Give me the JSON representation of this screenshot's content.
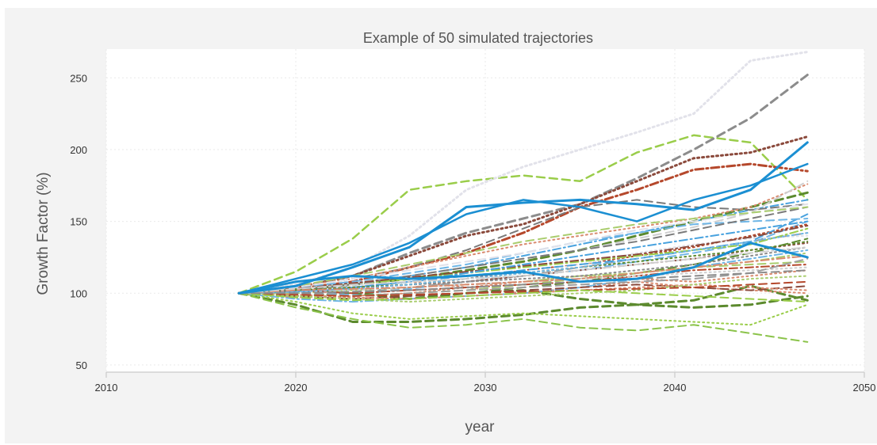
{
  "chart_data": {
    "type": "line",
    "title": "Example of 50 simulated trajectories",
    "xlabel": "year",
    "ylabel": "Growth Factor (%)",
    "xlim": [
      2010,
      2050
    ],
    "ylim": [
      45,
      270
    ],
    "xticks": [
      2010,
      2020,
      2030,
      2040,
      2050
    ],
    "yticks": [
      50,
      100,
      150,
      200,
      250
    ],
    "grid": true,
    "series_count": 50,
    "x": [
      2017,
      2020,
      2023,
      2026,
      2029,
      2032,
      2035,
      2038,
      2041,
      2044,
      2047
    ],
    "series": [
      {
        "values": [
          100,
          105,
          118,
          132,
          160,
          163,
          165,
          162,
          158,
          172,
          205
        ],
        "color": "#1b8fd2",
        "style": "solid",
        "width": 3
      },
      {
        "values": [
          100,
          108,
          112,
          110,
          112,
          115,
          108,
          110,
          118,
          135,
          125
        ],
        "color": "#1b8fd2",
        "style": "solid",
        "width": 3
      },
      {
        "values": [
          100,
          110,
          120,
          135,
          155,
          165,
          160,
          150,
          165,
          175,
          190
        ],
        "color": "#1b8fd2",
        "style": "solid",
        "width": 2.5
      },
      {
        "values": [
          100,
          115,
          138,
          172,
          178,
          182,
          178,
          198,
          210,
          205,
          165
        ],
        "color": "#9acd4a",
        "style": "dash",
        "width": 2.5
      },
      {
        "values": [
          100,
          106,
          118,
          140,
          172,
          188,
          200,
          212,
          225,
          262,
          268
        ],
        "color": "#e2e2ea",
        "style": "dot",
        "width": 3
      },
      {
        "values": [
          100,
          104,
          112,
          128,
          142,
          152,
          162,
          180,
          200,
          222,
          252
        ],
        "color": "#8c8c8c",
        "style": "dash",
        "width": 3
      },
      {
        "values": [
          100,
          104,
          112,
          126,
          140,
          148,
          162,
          178,
          194,
          198,
          209
        ],
        "color": "#8b4a3c",
        "style": "dot",
        "width": 3
      },
      {
        "values": [
          100,
          103,
          108,
          118,
          128,
          142,
          160,
          172,
          186,
          190,
          185
        ],
        "color": "#b5482c",
        "style": "dashdot",
        "width": 3
      },
      {
        "values": [
          100,
          92,
          80,
          80,
          82,
          85,
          90,
          92,
          95,
          105,
          95
        ],
        "color": "#5c8a2e",
        "style": "dash",
        "width": 3
      },
      {
        "values": [
          100,
          90,
          82,
          76,
          78,
          82,
          76,
          74,
          78,
          72,
          66
        ],
        "color": "#8bc34a",
        "style": "dash",
        "width": 2
      },
      {
        "values": [
          100,
          94,
          86,
          82,
          84,
          86,
          84,
          82,
          80,
          78,
          92
        ],
        "color": "#9acd4a",
        "style": "dot",
        "width": 2
      },
      {
        "values": [
          100,
          98,
          100,
          96,
          100,
          102,
          96,
          92,
          90,
          92,
          98
        ],
        "color": "#5c8a2e",
        "style": "dash",
        "width": 3
      },
      {
        "values": [
          100,
          102,
          104,
          108,
          104,
          100,
          104,
          108,
          104,
          102,
          100
        ],
        "color": "#d98a6e",
        "style": "dot",
        "width": 2
      },
      {
        "values": [
          100,
          101,
          99,
          103,
          108,
          112,
          116,
          122,
          128,
          135,
          150
        ],
        "color": "#6fb6e6",
        "style": "dash",
        "width": 2
      },
      {
        "values": [
          100,
          103,
          107,
          112,
          118,
          126,
          134,
          142,
          150,
          158,
          165
        ],
        "color": "#4aa3df",
        "style": "dashdot",
        "width": 2
      },
      {
        "values": [
          100,
          102,
          106,
          110,
          116,
          122,
          130,
          140,
          150,
          160,
          170
        ],
        "color": "#5c8a2e",
        "style": "dash",
        "width": 3
      },
      {
        "values": [
          100,
          101,
          104,
          106,
          110,
          116,
          120,
          126,
          132,
          140,
          148
        ],
        "color": "#b5482c",
        "style": "dot",
        "width": 2
      },
      {
        "values": [
          100,
          99,
          101,
          104,
          108,
          112,
          118,
          124,
          130,
          136,
          142
        ],
        "color": "#9e9e9e",
        "style": "dash",
        "width": 2
      },
      {
        "values": [
          100,
          104,
          110,
          118,
          130,
          145,
          160,
          165,
          160,
          158,
          162
        ],
        "color": "#7a7a7a",
        "style": "dash",
        "width": 2
      },
      {
        "values": [
          100,
          97,
          98,
          100,
          104,
          108,
          112,
          110,
          108,
          112,
          116
        ],
        "color": "#d98a6e",
        "style": "dot",
        "width": 2
      },
      {
        "values": [
          100,
          100,
          102,
          104,
          106,
          108,
          112,
          114,
          118,
          122,
          128
        ],
        "color": "#aacd6e",
        "style": "dashdot",
        "width": 2
      },
      {
        "values": [
          100,
          102,
          105,
          108,
          110,
          114,
          120,
          128,
          134,
          138,
          140
        ],
        "color": "#e2e2ea",
        "style": "dot",
        "width": 2
      },
      {
        "values": [
          100,
          96,
          94,
          96,
          98,
          100,
          104,
          110,
          118,
          124,
          130
        ],
        "color": "#6fb6e6",
        "style": "dashdot",
        "width": 2
      },
      {
        "values": [
          100,
          103,
          100,
          98,
          100,
          104,
          108,
          114,
          120,
          128,
          138
        ],
        "color": "#5c8a2e",
        "style": "dash",
        "width": 2
      },
      {
        "values": [
          100,
          105,
          110,
          118,
          126,
          134,
          140,
          146,
          152,
          160,
          176
        ],
        "color": "#d98a6e",
        "style": "dot",
        "width": 2
      },
      {
        "values": [
          100,
          104,
          108,
          112,
          118,
          124,
          130,
          138,
          146,
          156,
          178
        ],
        "color": "#cfcfcf",
        "style": "dash",
        "width": 2
      },
      {
        "values": [
          100,
          101,
          103,
          106,
          108,
          112,
          116,
          120,
          124,
          130,
          135
        ],
        "color": "#8b4a3c",
        "style": "dot",
        "width": 2
      },
      {
        "values": [
          100,
          99,
          98,
          100,
          102,
          106,
          110,
          114,
          118,
          120,
          122
        ],
        "color": "#aacd6e",
        "style": "dash",
        "width": 2
      },
      {
        "values": [
          100,
          100,
          104,
          108,
          112,
          116,
          120,
          124,
          130,
          136,
          155
        ],
        "color": "#4aa3df",
        "style": "dash",
        "width": 2
      },
      {
        "values": [
          100,
          102,
          100,
          102,
          104,
          106,
          108,
          112,
          116,
          118,
          120
        ],
        "color": "#b5482c",
        "style": "dashdot",
        "width": 2
      },
      {
        "values": [
          100,
          98,
          96,
          98,
          100,
          102,
          104,
          106,
          104,
          102,
          105
        ],
        "color": "#8b4a3c",
        "style": "dash",
        "width": 2
      },
      {
        "values": [
          100,
          103,
          106,
          110,
          114,
          118,
          122,
          126,
          130,
          134,
          145
        ],
        "color": "#9acd4a",
        "style": "dashdot",
        "width": 2
      },
      {
        "values": [
          100,
          102,
          104,
          106,
          108,
          110,
          112,
          116,
          120,
          126,
          132
        ],
        "color": "#8c8c8c",
        "style": "dot",
        "width": 2
      },
      {
        "values": [
          100,
          99,
          97,
          96,
          98,
          100,
          102,
          104,
          106,
          104,
          102
        ],
        "color": "#d98a6e",
        "style": "dot",
        "width": 2
      },
      {
        "values": [
          100,
          104,
          108,
          114,
          120,
          128,
          136,
          142,
          148,
          150,
          152
        ],
        "color": "#6fb6e6",
        "style": "dash",
        "width": 2
      },
      {
        "values": [
          100,
          101,
          102,
          104,
          106,
          108,
          110,
          112,
          114,
          116,
          118
        ],
        "color": "#cfcfcf",
        "style": "dot",
        "width": 2
      },
      {
        "values": [
          100,
          102,
          106,
          112,
          118,
          124,
          130,
          136,
          144,
          152,
          160
        ],
        "color": "#7a7a7a",
        "style": "dash",
        "width": 2
      },
      {
        "values": [
          100,
          98,
          96,
          94,
          96,
          98,
          100,
          102,
          106,
          110,
          112
        ],
        "color": "#aacd6e",
        "style": "dot",
        "width": 2
      },
      {
        "values": [
          100,
          103,
          107,
          111,
          115,
          119,
          123,
          127,
          133,
          139,
          147
        ],
        "color": "#8b4a3c",
        "style": "dashdot",
        "width": 2
      },
      {
        "values": [
          100,
          101,
          104,
          108,
          114,
          120,
          126,
          132,
          138,
          144,
          150
        ],
        "color": "#4aa3df",
        "style": "dashdot",
        "width": 2
      },
      {
        "values": [
          100,
          100,
          98,
          100,
          102,
          104,
          106,
          108,
          110,
          114,
          124
        ],
        "color": "#9e9e9e",
        "style": "dash",
        "width": 2
      },
      {
        "values": [
          100,
          102,
          104,
          106,
          110,
          114,
          118,
          122,
          126,
          130,
          136
        ],
        "color": "#5c8a2e",
        "style": "dot",
        "width": 2
      },
      {
        "values": [
          100,
          99,
          98,
          99,
          100,
          101,
          102,
          103,
          104,
          106,
          108
        ],
        "color": "#b5482c",
        "style": "dash",
        "width": 2
      },
      {
        "values": [
          100,
          104,
          110,
          116,
          122,
          128,
          136,
          144,
          150,
          156,
          162
        ],
        "color": "#e2e2ea",
        "style": "dash",
        "width": 2
      },
      {
        "values": [
          100,
          97,
          95,
          96,
          98,
          100,
          102,
          100,
          98,
          96,
          94
        ],
        "color": "#9acd4a",
        "style": "dash",
        "width": 2
      },
      {
        "values": [
          100,
          101,
          103,
          106,
          110,
          114,
          118,
          124,
          130,
          136,
          142
        ],
        "color": "#6fb6e6",
        "style": "dot",
        "width": 2
      },
      {
        "values": [
          100,
          102,
          103,
          104,
          106,
          108,
          110,
          114,
          118,
          122,
          126
        ],
        "color": "#d98a6e",
        "style": "dashdot",
        "width": 2
      },
      {
        "values": [
          100,
          103,
          106,
          108,
          110,
          112,
          116,
          120,
          124,
          128,
          132
        ],
        "color": "#cfcfcf",
        "style": "dashdot",
        "width": 2
      },
      {
        "values": [
          100,
          100,
          101,
          102,
          104,
          106,
          108,
          110,
          112,
          114,
          116
        ],
        "color": "#8c8c8c",
        "style": "dash",
        "width": 2
      },
      {
        "values": [
          100,
          105,
          112,
          120,
          128,
          136,
          142,
          148,
          152,
          156,
          160
        ],
        "color": "#aacd6e",
        "style": "dash",
        "width": 2
      }
    ]
  }
}
